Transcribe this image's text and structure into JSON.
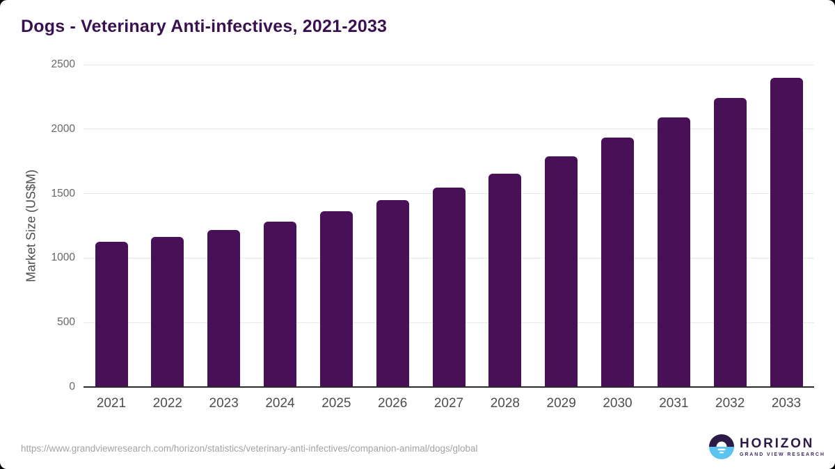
{
  "page": {
    "title": "Dogs - Veterinary Anti-infectives, 2021-2033",
    "source_url": "https://www.grandviewresearch.com/horizon/statistics/veterinary-anti-infectives/companion-animal/dogs/global"
  },
  "chart_data": {
    "type": "bar",
    "title": "Dogs - Veterinary Anti-infectives, 2021-2033",
    "categories": [
      "2021",
      "2022",
      "2023",
      "2024",
      "2025",
      "2026",
      "2027",
      "2028",
      "2029",
      "2030",
      "2031",
      "2032",
      "2033"
    ],
    "values": [
      1125,
      1165,
      1220,
      1285,
      1365,
      1450,
      1545,
      1655,
      1790,
      1935,
      2090,
      2240,
      2400
    ],
    "xlabel": "",
    "ylabel": "Market Size (US$M)",
    "ylim": [
      0,
      2500
    ],
    "yticks": [
      0,
      500,
      1000,
      1500,
      2000,
      2500
    ],
    "grid": "horizontal",
    "legend": "none",
    "bar_color": "#481056",
    "gridline_color": "#e8e8e8",
    "axis_line_color": "#2b2b2b"
  },
  "branding": {
    "logo_name": "HORIZON",
    "logo_subtitle": "GRAND VIEW RESEARCH",
    "logo_dark_color": "#2e1a47",
    "logo_blue_color": "#5bc3f0"
  }
}
